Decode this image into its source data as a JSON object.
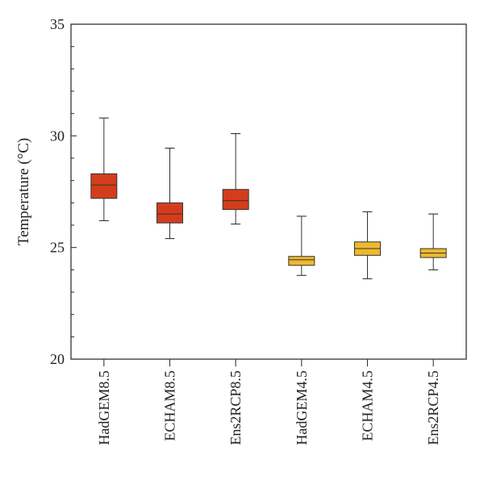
{
  "chart_data": {
    "type": "box",
    "title": "",
    "xlabel": "",
    "ylabel": "Temperature (°C)",
    "ylim": [
      20,
      35
    ],
    "yticks": [
      20,
      25,
      30,
      35
    ],
    "grid": false,
    "categories": [
      "HadGEM8.5",
      "ECHAM8.5",
      "Ens2RCP8.5",
      "HadGEM4.5",
      "ECHAM4.5",
      "Ens2RCP4.5"
    ],
    "boxes": [
      {
        "category": "HadGEM8.5",
        "min": 26.2,
        "q1": 27.2,
        "median": 27.8,
        "q3": 28.3,
        "max": 30.8,
        "color": "#d43d1b"
      },
      {
        "category": "ECHAM8.5",
        "min": 25.4,
        "q1": 26.1,
        "median": 26.5,
        "q3": 27.0,
        "max": 29.45,
        "color": "#d43d1b"
      },
      {
        "category": "Ens2RCP8.5",
        "min": 26.05,
        "q1": 26.7,
        "median": 27.1,
        "q3": 27.6,
        "max": 30.1,
        "color": "#d43d1b"
      },
      {
        "category": "HadGEM4.5",
        "min": 23.75,
        "q1": 24.2,
        "median": 24.45,
        "q3": 24.6,
        "max": 26.4,
        "color": "#edb92e"
      },
      {
        "category": "ECHAM4.5",
        "min": 23.6,
        "q1": 24.65,
        "median": 24.95,
        "q3": 25.25,
        "max": 26.6,
        "color": "#edb92e"
      },
      {
        "category": "Ens2RCP4.5",
        "min": 24.0,
        "q1": 24.55,
        "median": 24.75,
        "q3": 24.95,
        "max": 26.5,
        "color": "#edb92e"
      }
    ]
  }
}
